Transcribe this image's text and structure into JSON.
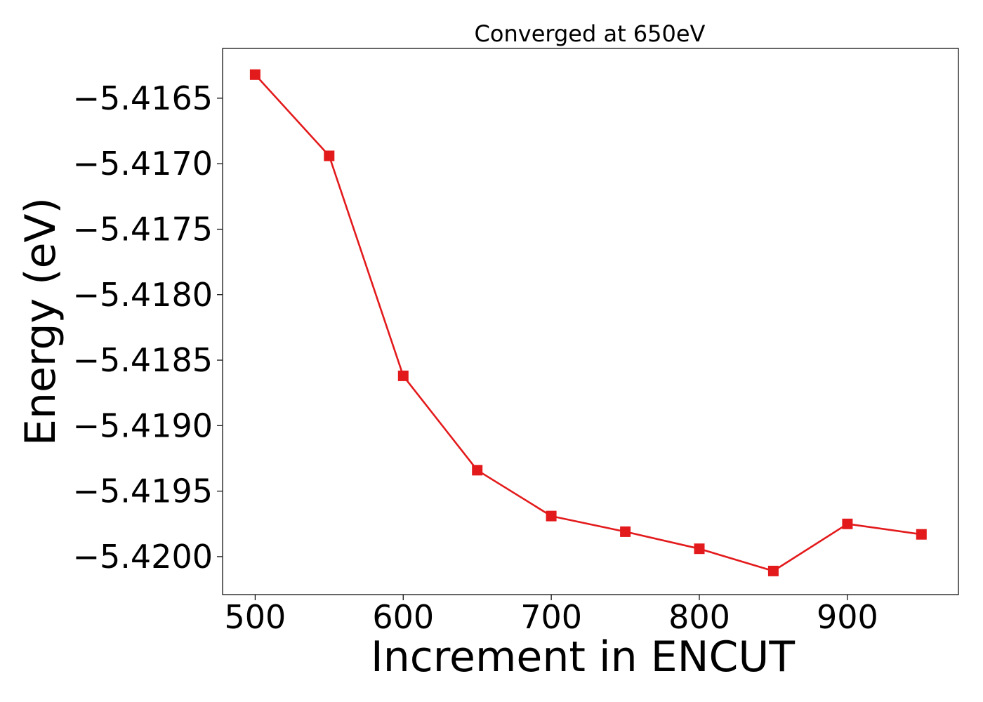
{
  "chart_data": {
    "type": "line",
    "title": "Converged at 650eV",
    "xlabel": "Increment in ENCUT",
    "ylabel": "Energy (eV)",
    "x": [
      500,
      550,
      600,
      650,
      700,
      750,
      800,
      850,
      900,
      950
    ],
    "series": [
      {
        "values": [
          -5.41632,
          -5.41694,
          -5.41862,
          -5.41934,
          -5.41969,
          -5.41981,
          -5.41994,
          -5.42011,
          -5.41975,
          -5.41983
        ],
        "color": "#e31a1c",
        "marker": "square"
      }
    ],
    "xlim": [
      478,
      975
    ],
    "ylim": [
      -5.42029,
      -5.41612
    ],
    "xticks": [
      500,
      600,
      700,
      800,
      900
    ],
    "xtick_labels": [
      "500",
      "600",
      "700",
      "800",
      "900"
    ],
    "yticks": [
      -5.4165,
      -5.417,
      -5.4175,
      -5.418,
      -5.4185,
      -5.419,
      -5.4195,
      -5.42
    ],
    "ytick_labels": [
      "−5.4165",
      "−5.4170",
      "−5.4175",
      "−5.4180",
      "−5.4185",
      "−5.4190",
      "−5.4195",
      "−5.4200"
    ],
    "grid": false,
    "legend": "none"
  }
}
